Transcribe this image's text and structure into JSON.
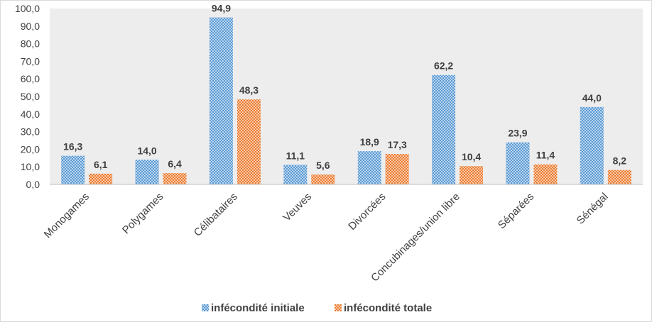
{
  "chart_data": {
    "type": "bar",
    "categories": [
      "Monogames",
      "Polygames",
      "Célibataires",
      "Veuves",
      "Divorcées",
      "Concubinages/union libre",
      "Séparées",
      "Sénégal"
    ],
    "series": [
      {
        "name": "infécondité initiale",
        "values": [
          16.3,
          14.0,
          94.9,
          11.1,
          18.9,
          62.2,
          23.9,
          44.0
        ],
        "labels": [
          "16,3",
          "14,0",
          "94,9",
          "11,1",
          "18,9",
          "62,2",
          "23,9",
          "44,0"
        ],
        "color": "#5b9bd5"
      },
      {
        "name": "infécondité totale",
        "values": [
          6.1,
          6.4,
          48.3,
          5.6,
          17.3,
          10.4,
          11.4,
          8.2
        ],
        "labels": [
          "6,1",
          "6,4",
          "48,3",
          "5,6",
          "17,3",
          "10,4",
          "11,4",
          "8,2"
        ],
        "color": "#ed7d31"
      }
    ],
    "ylim": [
      0,
      100
    ],
    "yticks": [
      "0,0",
      "10,0",
      "20,0",
      "30,0",
      "40,0",
      "50,0",
      "60,0",
      "70,0",
      "80,0",
      "90,0",
      "100,0"
    ],
    "grid": false,
    "legend_position": "bottom",
    "plot_background": "#ededed"
  }
}
